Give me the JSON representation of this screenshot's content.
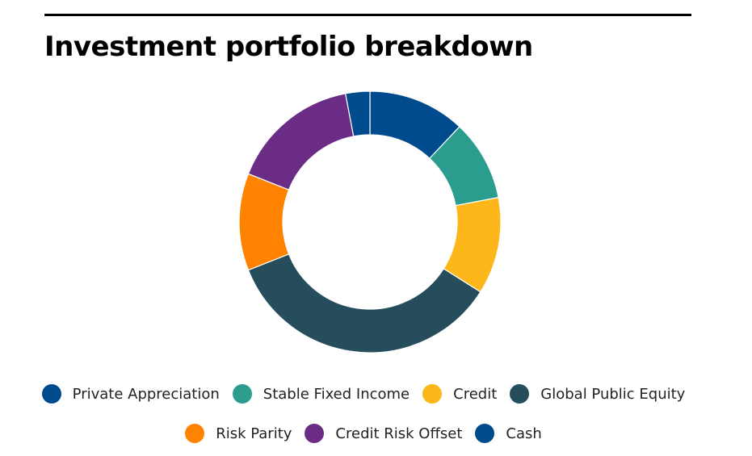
{
  "chart_data": {
    "type": "pie",
    "title": "Investment portfolio breakdown",
    "categories": [
      "Private Appreciation",
      "Stable Fixed Income",
      "Credit",
      "Global Public Equity",
      "Risk Parity",
      "Credit Risk Offset",
      "Cash"
    ],
    "values": [
      12,
      10,
      12,
      35,
      12,
      16,
      3
    ],
    "colors": [
      "#004b8d",
      "#2a9d8f",
      "#fdb71a",
      "#264d5c",
      "#ff8200",
      "#6a2c85",
      "#004b8d"
    ],
    "donut": true
  }
}
